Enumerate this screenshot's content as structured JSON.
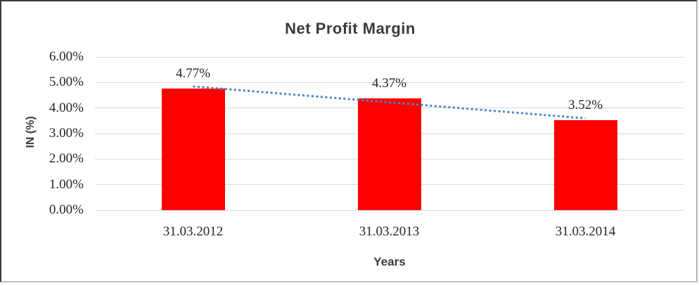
{
  "chart_data": {
    "type": "bar",
    "title": "Net Profit Margin",
    "xlabel": "Years",
    "ylabel": "IN (%)",
    "categories": [
      "31.03.2012",
      "31.03.2013",
      "31.03.2014"
    ],
    "values": [
      4.77,
      4.37,
      3.52
    ],
    "value_labels": [
      "4.77%",
      "4.37%",
      "3.52%"
    ],
    "y_ticks": [
      {
        "value": 0,
        "label": "0.00%"
      },
      {
        "value": 1,
        "label": "1.00%"
      },
      {
        "value": 2,
        "label": "2.00%"
      },
      {
        "value": 3,
        "label": "3.00%"
      },
      {
        "value": 4,
        "label": "4.00%"
      },
      {
        "value": 5,
        "label": "5.00%"
      },
      {
        "value": 6,
        "label": "6.00%"
      }
    ],
    "ylim": [
      0,
      6
    ],
    "grid": true,
    "legend": "none",
    "bar_color": "#ff0000",
    "gridline_color": "#d9d9d9",
    "label_color": "#262626",
    "title_color": "#3b3b3b",
    "trendline": {
      "type": "linear",
      "style": "dotted",
      "color": "#4a86c8"
    }
  }
}
